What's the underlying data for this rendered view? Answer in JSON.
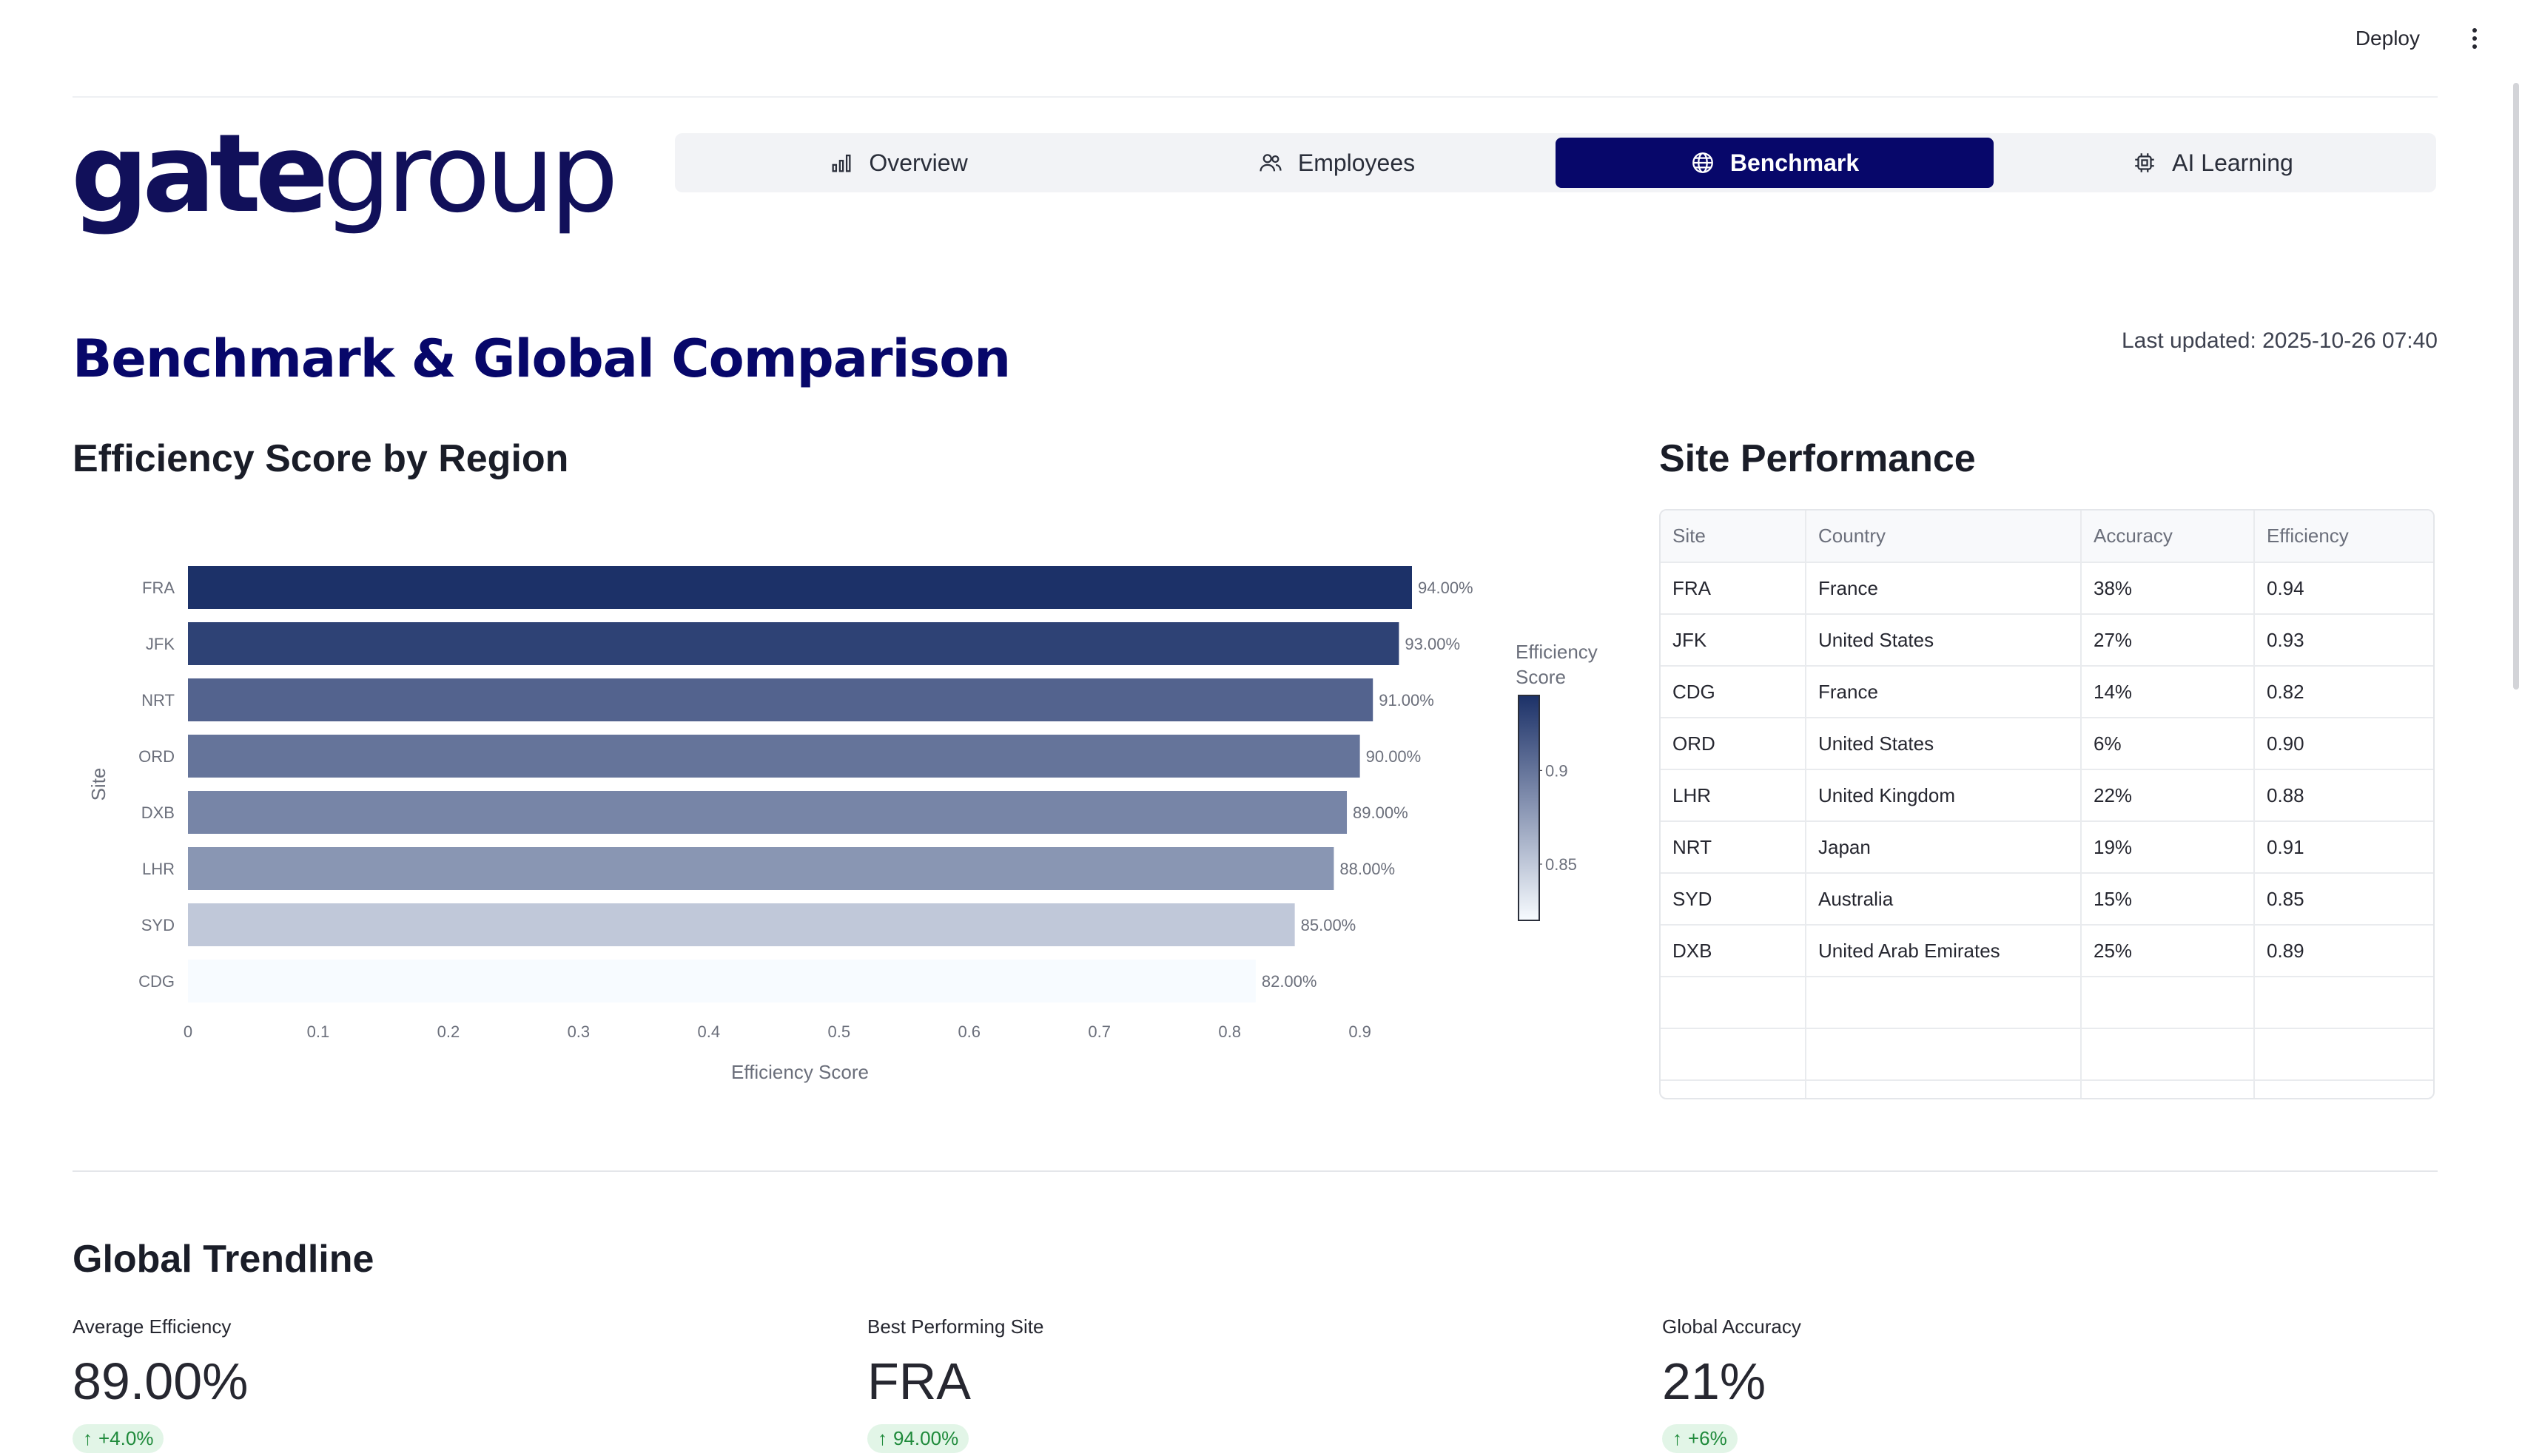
{
  "header": {
    "deploy_label": "Deploy"
  },
  "logo": {
    "part1": "gate",
    "part2": "group"
  },
  "nav": {
    "tabs": [
      {
        "label": "Overview",
        "icon": "bar-chart-icon",
        "active": false
      },
      {
        "label": "Employees",
        "icon": "users-icon",
        "active": false
      },
      {
        "label": "Benchmark",
        "icon": "globe-icon",
        "active": true
      },
      {
        "label": "AI Learning",
        "icon": "cpu-icon",
        "active": false
      }
    ]
  },
  "page": {
    "title": "Benchmark & Global Comparison",
    "last_updated": "Last updated: 2025-10-26 07:40"
  },
  "chart_section": {
    "title": "Efficiency Score by Region"
  },
  "chart_data": {
    "type": "bar",
    "orientation": "horizontal",
    "categories": [
      "FRA",
      "JFK",
      "NRT",
      "ORD",
      "DXB",
      "LHR",
      "SYD",
      "CDG"
    ],
    "values": [
      0.94,
      0.93,
      0.91,
      0.9,
      0.89,
      0.88,
      0.85,
      0.82
    ],
    "data_labels": [
      "94.00%",
      "93.00%",
      "91.00%",
      "90.00%",
      "89.00%",
      "88.00%",
      "85.00%",
      "82.00%"
    ],
    "xlabel": "Efficiency Score",
    "ylabel": "Site",
    "xlim": [
      0,
      0.94
    ],
    "xticks": [
      "0",
      "0.1",
      "0.2",
      "0.3",
      "0.4",
      "0.5",
      "0.6",
      "0.7",
      "0.8",
      "0.9"
    ],
    "colorbar": {
      "title_line1": "Efficiency",
      "title_line2": "Score",
      "ticks": [
        "0.9",
        "0.85"
      ],
      "range": [
        0.82,
        0.94
      ]
    },
    "color_scale": {
      "low": "#f7fbff",
      "high": "#1c3168"
    }
  },
  "table_section": {
    "title": "Site Performance",
    "columns": [
      "Site",
      "Country",
      "Accuracy",
      "Efficiency"
    ],
    "rows": [
      [
        "FRA",
        "France",
        "38%",
        "0.94"
      ],
      [
        "JFK",
        "United States",
        "27%",
        "0.93"
      ],
      [
        "CDG",
        "France",
        "14%",
        "0.82"
      ],
      [
        "ORD",
        "United States",
        "6%",
        "0.90"
      ],
      [
        "LHR",
        "United Kingdom",
        "22%",
        "0.88"
      ],
      [
        "NRT",
        "Japan",
        "19%",
        "0.91"
      ],
      [
        "SYD",
        "Australia",
        "15%",
        "0.85"
      ],
      [
        "DXB",
        "United Arab Emirates",
        "25%",
        "0.89"
      ]
    ],
    "empty_rows": 3
  },
  "trend": {
    "title": "Global Trendline",
    "metrics": [
      {
        "label": "Average Efficiency",
        "value": "89.00%",
        "delta": "+4.0%"
      },
      {
        "label": "Best Performing Site",
        "value": "FRA",
        "delta": "94.00%"
      },
      {
        "label": "Global Accuracy",
        "value": "21%",
        "delta": "+6%"
      }
    ]
  }
}
